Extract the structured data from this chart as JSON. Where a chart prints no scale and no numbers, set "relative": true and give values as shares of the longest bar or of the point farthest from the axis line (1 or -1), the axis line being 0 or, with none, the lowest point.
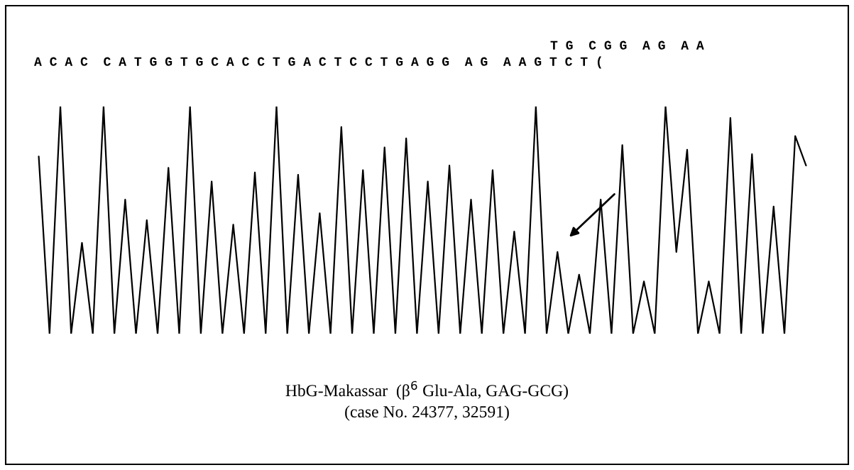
{
  "chart_data": {
    "type": "line",
    "relative": true,
    "categories": [
      null,
      null,
      null,
      null,
      null,
      null,
      null,
      null,
      null,
      null,
      null,
      null,
      null,
      null,
      null,
      null,
      null,
      null,
      null,
      null,
      null,
      null,
      null,
      null,
      null,
      null,
      null,
      null,
      null,
      null,
      null,
      null,
      null,
      null,
      null,
      null,
      null,
      null,
      null,
      null,
      null,
      null,
      null,
      null,
      null,
      null,
      null,
      null,
      null,
      null,
      null,
      null,
      null,
      null,
      null,
      null,
      null,
      null,
      null,
      null,
      null,
      null,
      null,
      null,
      null,
      null,
      null,
      null,
      null,
      null,
      null,
      null
    ],
    "series": [
      {
        "color": "#000000",
        "values": [
          0.78,
          0,
          1,
          0,
          0.4,
          0,
          1,
          0,
          0.59,
          0,
          0.5,
          0,
          0.73,
          0,
          1,
          0,
          0.67,
          0,
          0.48,
          0,
          0.71,
          0,
          1,
          0,
          0.7,
          0,
          0.53,
          0,
          0.91,
          0,
          0.72,
          0,
          0.82,
          0,
          0.86,
          0,
          0.67,
          0,
          0.74,
          0,
          0.59,
          0,
          0.72,
          0,
          0.45,
          0,
          1,
          0,
          0.36,
          0,
          0.26,
          0,
          0.59,
          0,
          0.83,
          0,
          0.23,
          0,
          1,
          0.36,
          0.81,
          0,
          0.23,
          0,
          0.95,
          0,
          0.79,
          0,
          0.56,
          0,
          0.87,
          0.74
        ]
      }
    ],
    "annotations": [
      "T G  C G G  A G  A A",
      "A C A C  C A T G G T G C A C C T G A C T C C T G A G G  A G  A A G T C T (",
      "HbG-Makassar  (β$^{6}$ Glu-Ala, GAG-GCG)",
      "(case No. 24377, 32591)"
    ]
  }
}
